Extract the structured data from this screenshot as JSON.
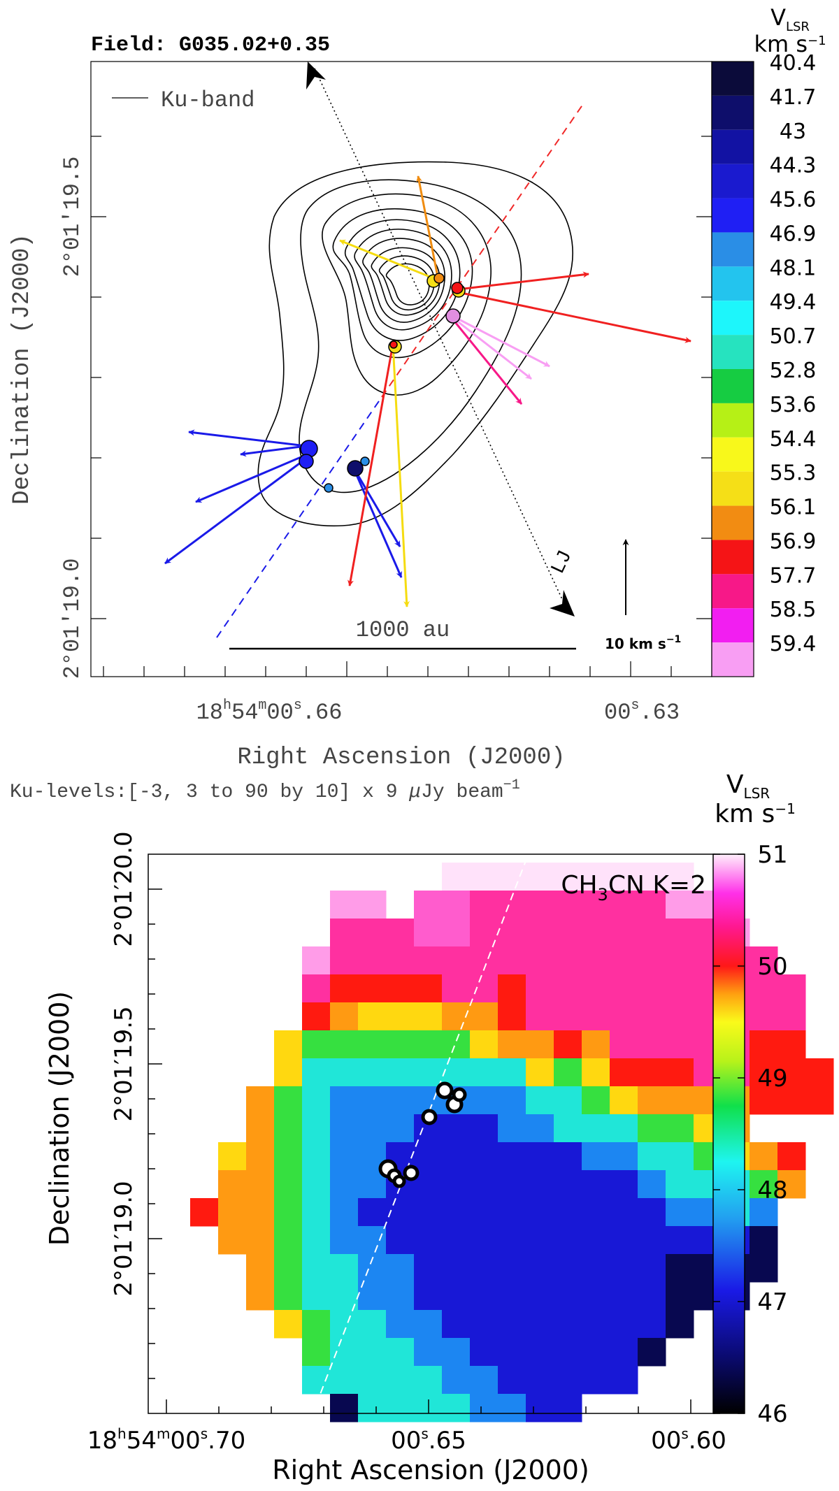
{
  "chart_data": [
    {
      "type": "contour",
      "title": "Field: G035.02+0.35",
      "legend": "Ku-band",
      "xlabel": "Right Ascension (J2000)",
      "ylabel": "Declination (J2000)",
      "x_ticks": [
        {
          "label": "18h54m00s.66",
          "h": "h",
          "m": "m",
          "s": "s",
          "pre": "18",
          "mid": "54",
          "mid2": "00",
          "post": ".66"
        },
        {
          "label": "00s.63",
          "pre": "00",
          "s": "s",
          "post": ".63"
        }
      ],
      "y_ticks": [
        "2°01′19.5″",
        "2°01′19.0″"
      ],
      "y_tick_text": [
        "2°01′19.5",
        "2°01′19.0"
      ],
      "caption": "Ku-levels:[-3, 3 to 90 by 10] x 9 μJy beam−1",
      "caption_parts": {
        "pre": "Ku-levels:[-3, 3 to 90 by 10] x 9 ",
        "mu": "μ",
        "post": "Jy beam",
        "sup": "−1"
      },
      "scale_bar": "1000 au",
      "velocity_ref": {
        "pre": "10 km s",
        "sup": "−1"
      },
      "jet_label": "LJ",
      "colorbar": {
        "title": "V",
        "title_sub": "LSR",
        "unit": "km s",
        "unit_sup": "−1",
        "labels": [
          "40.4",
          "41.7",
          "43",
          "44.3",
          "45.6",
          "46.9",
          "48.1",
          "49.4",
          "50.7",
          "52.8",
          "53.6",
          "54.4",
          "55.3",
          "56.1",
          "56.9",
          "57.7",
          "58.5",
          "59.4"
        ],
        "colors": [
          "#0b0b3a",
          "#0e0e6b",
          "#1212a3",
          "#1a1acf",
          "#1f1ff4",
          "#2a8ee6",
          "#23c4ee",
          "#1df6fb",
          "#26e3bf",
          "#16cc42",
          "#b6f016",
          "#f8f81b",
          "#f5df17",
          "#f28c12",
          "#f51416",
          "#f71888",
          "#f21ef1",
          "#f89ef3"
        ]
      },
      "masers": [
        {
          "velocity": 45.6,
          "color": "#1f1ff4"
        },
        {
          "velocity": 46.9,
          "color": "#2a8ee6"
        },
        {
          "velocity": 44.3,
          "color": "#1a1acf"
        },
        {
          "velocity": 56.9,
          "color": "#f51416"
        },
        {
          "velocity": 55.3,
          "color": "#f5df17"
        },
        {
          "velocity": 56.1,
          "color": "#f28c12"
        },
        {
          "velocity": 59.4,
          "color": "#f89ef3"
        },
        {
          "velocity": 57.7,
          "color": "#f71888"
        }
      ]
    },
    {
      "type": "heatmap",
      "title": "CH3CN K=2",
      "title_parts": {
        "pre": "CH",
        "sub": "3",
        "post": "CN  K=2"
      },
      "xlabel": "Right Ascension (J2000)",
      "ylabel": "Declination (J2000)",
      "x_ticks": [
        {
          "label": "18h54m00s.70",
          "pre": "18",
          "h": "h",
          "mid": "54",
          "m": "m",
          "mid2": "00",
          "s": "s",
          "post": ".70"
        },
        {
          "label": "00s.65",
          "pre": "00",
          "s": "s",
          "post": ".65"
        },
        {
          "label": "00s.60",
          "pre": "00",
          "s": "s",
          "post": ".60"
        }
      ],
      "y_ticks": [
        "2°01′20.0″",
        "2°01′19.5″",
        "2°01′19.0″"
      ],
      "y_tick_text": [
        "2°01′20.0",
        "2°01′19.5",
        "2°01′19.0"
      ],
      "colorbar": {
        "title": "V",
        "title_sub": "LSR",
        "unit": "km s",
        "unit_sup": "−1",
        "min": 46,
        "max": 51,
        "ticks": [
          "46",
          "47",
          "48",
          "49",
          "50",
          "51"
        ]
      },
      "velocity_map_rows": [
        "..........TTTTTTTTT.........",
        "......PP.UUMMMMMMMPP...........",
        "......MMMUUMMMMMMMMMP..........",
        ".....PMMMMMMMMMMMMMMMM.........",
        ".....MRRRRMMRMMMMMMMMMM........",
        ".....ROYYYOORMMMMMMMMMM........",
        "....YGGGGGGYOOROMMMMMRR........",
        "....YCCCCCCCCYGYRRRMMRRR.......",
        "...OGCBBBBBBBCCGYOOOORRR.......",
        "...OGCBBBDDDBBCCCGGYO.........",
        "..YOGCBBDDDDDDDBBCCGYOR........",
        "..OOGCBBDDDDDDDDDBCCCGO........",
        ".ROOGCBDDDDDDDDDDDBBCB.........",
        "..OOGCBBDDDDDDDDDDDDDN.........",
        "...OGCCBBDDDDDDDDDNNNN.........",
        "...OGCCBBDDDDDDDDDNNN..........",
        "....YGCCBBDDDDDDDDN............",
        ".....GCCCBBDDDDDDN.............",
        ".....CCCCCBBDDDDD..............",
        "......NCCCCBBDD................"
      ]
    }
  ]
}
